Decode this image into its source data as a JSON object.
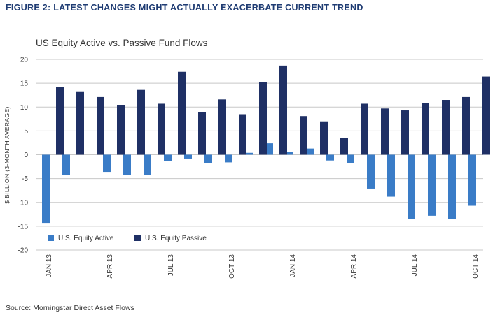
{
  "figure_title": "FIGURE 2: LATEST CHANGES MIGHT ACTUALLY EXACERBATE CURRENT TREND",
  "source": "Source: Morningstar Direct Asset Flows",
  "colors": {
    "active": "#3a7cc7",
    "passive": "#1f3065",
    "title": "#1f3c73",
    "grid": "#c8c8c8"
  },
  "chart_data": {
    "type": "bar",
    "title": "US Equity Active vs. Passive Fund Flows",
    "xlabel": "",
    "ylabel": "$ BILLION (3-MONTH AVERAGE)",
    "ylim": [
      -20,
      20
    ],
    "yticks": [
      20,
      15,
      10,
      5,
      0,
      -5,
      -10,
      -15,
      -20
    ],
    "grid": true,
    "legend_position": "bottom-left",
    "categories": [
      "Jan 13",
      "Feb 13",
      "Mar 13",
      "Apr 13",
      "May 13",
      "Jun 13",
      "Jul 13",
      "Aug 13",
      "Sep 13",
      "Oct 13",
      "Nov 13",
      "Dec 13",
      "Jan 14",
      "Feb 14",
      "Mar 14",
      "Apr 14",
      "May 14",
      "Jun 14",
      "Jul 14",
      "Aug 14",
      "Sep 14",
      "Oct 14"
    ],
    "tick_labels": [
      {
        "index": 0,
        "label": "JAN 13"
      },
      {
        "index": 3,
        "label": "APR 13"
      },
      {
        "index": 6,
        "label": "JUL 13"
      },
      {
        "index": 9,
        "label": "OCT 13"
      },
      {
        "index": 12,
        "label": "JAN 14"
      },
      {
        "index": 15,
        "label": "APR 14"
      },
      {
        "index": 18,
        "label": "JUL 14"
      },
      {
        "index": 21,
        "label": "OCT 14"
      }
    ],
    "series": [
      {
        "name": "U.S. Equity Active",
        "values": [
          -14.3,
          -4.3,
          0,
          -3.6,
          -4.2,
          -4.2,
          -1.3,
          -0.8,
          -1.7,
          -1.6,
          0.4,
          2.4,
          0.6,
          1.3,
          -1.2,
          -1.8,
          -7.1,
          -8.8,
          -13.5,
          -12.8,
          -13.5,
          -10.7
        ]
      },
      {
        "name": "U.S. Equity Passive",
        "values": [
          14.2,
          13.3,
          12.1,
          10.4,
          13.6,
          10.7,
          17.4,
          9.0,
          11.6,
          8.5,
          15.2,
          18.7,
          8.1,
          7.0,
          3.5,
          10.7,
          9.7,
          9.3,
          10.9,
          11.5,
          12.1,
          16.4
        ]
      }
    ]
  }
}
